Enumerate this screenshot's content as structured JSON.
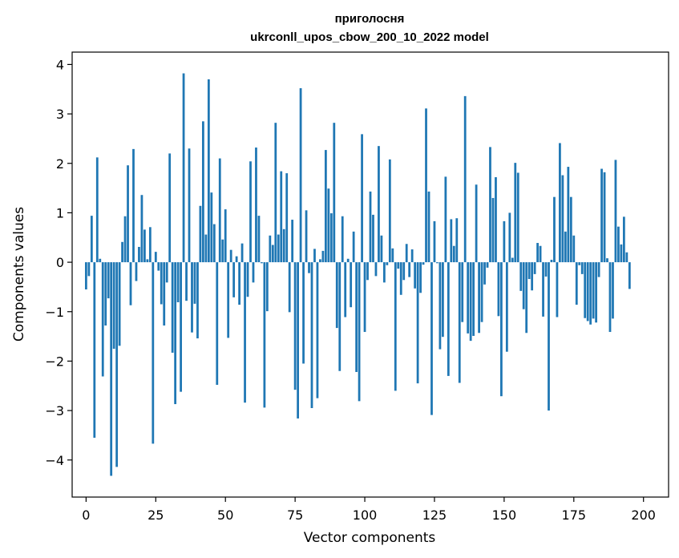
{
  "chart_data": {
    "type": "bar",
    "title": "приголосня",
    "subtitle": "ukrconll_upos_cbow_200_10_2022 model",
    "xlabel": "Vector components",
    "ylabel": "Components values",
    "xlim": [
      -5,
      209
    ],
    "ylim": [
      -4.75,
      4.25
    ],
    "xticks": [
      0,
      25,
      50,
      75,
      100,
      125,
      150,
      175,
      200
    ],
    "yticks": [
      -4,
      -3,
      -2,
      -1,
      0,
      1,
      2,
      3,
      4
    ],
    "xtick_labels": [
      "0",
      "25",
      "50",
      "75",
      "100",
      "125",
      "150",
      "175",
      "200"
    ],
    "ytick_labels": [
      "−4",
      "−3",
      "−2",
      "−1",
      "0",
      "1",
      "2",
      "3",
      "4"
    ],
    "grid": false,
    "bar_color": "#1f77b4",
    "values": [
      -0.55,
      -0.28,
      0.94,
      -3.55,
      2.12,
      0.07,
      -2.31,
      -1.28,
      -0.73,
      -4.32,
      -1.75,
      -4.14,
      -1.69,
      0.41,
      0.93,
      1.96,
      -0.87,
      2.29,
      -0.38,
      0.31,
      1.36,
      0.66,
      0.06,
      0.71,
      -3.67,
      0.21,
      -0.17,
      -0.85,
      -1.28,
      -0.41,
      2.2,
      -1.83,
      -2.87,
      -0.81,
      -2.62,
      3.82,
      -0.78,
      2.3,
      -1.42,
      -0.84,
      -1.54,
      1.14,
      2.85,
      0.56,
      3.7,
      1.41,
      0.77,
      -2.48,
      2.1,
      0.46,
      1.07,
      -1.53,
      0.25,
      -0.71,
      0.12,
      -0.86,
      0.38,
      -2.84,
      -0.7,
      2.04,
      -0.41,
      2.32,
      0.94,
      -0.02,
      -2.94,
      -0.99,
      0.54,
      0.35,
      2.82,
      0.56,
      1.84,
      0.67,
      1.8,
      -1.01,
      0.86,
      -2.58,
      -3.16,
      3.52,
      -2.05,
      1.05,
      -0.22,
      -2.95,
      0.27,
      -2.75,
      0.06,
      0.23,
      2.27,
      1.49,
      0.99,
      2.82,
      -1.33,
      -2.2,
      0.93,
      -1.11,
      0.07,
      -0.91,
      0.62,
      -2.22,
      -2.81,
      2.59,
      -1.41,
      -0.36,
      1.43,
      0.96,
      -0.28,
      2.35,
      0.54,
      -0.41,
      -0.06,
      2.08,
      0.28,
      -2.6,
      -0.13,
      -0.66,
      -0.36,
      0.37,
      -0.3,
      0.26,
      -0.53,
      -2.45,
      -0.62,
      -0.05,
      3.11,
      1.43,
      -3.09,
      0.83,
      -0.02,
      -1.76,
      -1.51,
      1.73,
      -2.3,
      0.87,
      0.33,
      0.89,
      -2.44,
      -1.21,
      3.36,
      -1.44,
      -1.59,
      -1.49,
      1.57,
      -1.43,
      -1.21,
      -0.45,
      -0.11,
      2.33,
      1.3,
      1.72,
      -1.09,
      -2.71,
      0.83,
      -1.81,
      1.0,
      0.09,
      2.01,
      1.81,
      -0.58,
      -0.95,
      -1.43,
      -0.34,
      -0.57,
      -0.24,
      0.39,
      0.33,
      -1.1,
      -0.29,
      -3.0,
      0.05,
      1.32,
      -1.11,
      2.41,
      1.76,
      0.62,
      1.93,
      1.32,
      0.54,
      -0.86,
      -0.06,
      -0.24,
      -1.13,
      -1.19,
      -1.26,
      -1.14,
      -1.22,
      -0.3,
      1.89,
      1.82,
      0.08,
      -1.41,
      -1.14,
      2.07,
      0.72,
      0.36,
      0.92,
      0.2,
      -0.54
    ]
  }
}
